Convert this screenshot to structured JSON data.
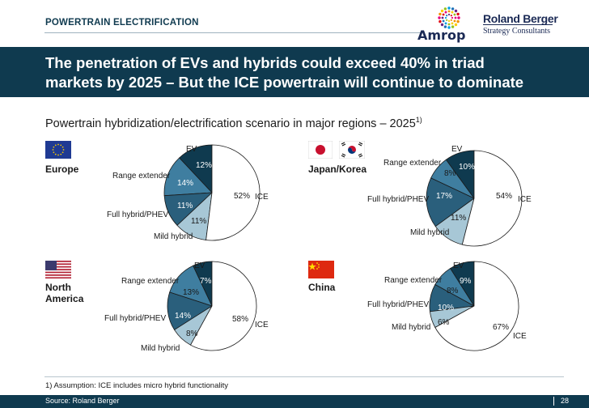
{
  "header": {
    "section": "POWERTRAIN ELECTRIFICATION",
    "title_line1": "The penetration of EVs and hybrids could exceed 40% in triad",
    "title_line2": "markets by 2025 – But the ICE powertrain will continue to dominate",
    "subtitle": "Powertrain hybridization/electrification scenario in major regions – 2025",
    "subtitle_note": "1)"
  },
  "logos": {
    "amrop": "Amrop",
    "roland_berger_line1": "Roland Berger",
    "roland_berger_line2": "Strategy Consultants"
  },
  "labels": {
    "ev": "EV",
    "range_extender": "Range extender",
    "full_hybrid": "Full hybrid/PHEV",
    "mild_hybrid": "Mild hybrid",
    "ice": "ICE"
  },
  "regions": {
    "europe": "Europe",
    "japan_korea": "Japan/Korea",
    "north_america_1": "North",
    "north_america_2": "America",
    "china": "China"
  },
  "flags": [
    "eu-flag-icon",
    "japan-flag-icon",
    "korea-flag-icon",
    "usa-flag-icon",
    "china-flag-icon"
  ],
  "colors": {
    "dark_navy": "#0f3a4f",
    "ev": "#0f3a4f",
    "range_extender": "#3f7ea0",
    "full_hybrid": "#2a5f7c",
    "mild_hybrid": "#a7c7d6",
    "ice": "#ffffff"
  },
  "chart_data": [
    {
      "type": "pie",
      "region": "Europe",
      "labels": [
        "EV",
        "Range extender",
        "Full hybrid/PHEV",
        "Mild hybrid",
        "ICE"
      ],
      "values": [
        12,
        14,
        11,
        11,
        52
      ],
      "value_labels": [
        "12%",
        "14%",
        "11%",
        "11%",
        "52%"
      ]
    },
    {
      "type": "pie",
      "region": "Japan/Korea",
      "labels": [
        "EV",
        "Range extender",
        "Full hybrid/PHEV",
        "Mild hybrid",
        "ICE"
      ],
      "values": [
        10,
        8,
        17,
        11,
        54
      ],
      "value_labels": [
        "10%",
        "8%",
        "17%",
        "11%",
        "54%"
      ]
    },
    {
      "type": "pie",
      "region": "North America",
      "labels": [
        "EV",
        "Range extender",
        "Full hybrid/PHEV",
        "Mild hybrid",
        "ICE"
      ],
      "values": [
        7,
        13,
        14,
        8,
        58
      ],
      "value_labels": [
        "7%",
        "13%",
        "14%",
        "8%",
        "58%"
      ]
    },
    {
      "type": "pie",
      "region": "China",
      "labels": [
        "EV",
        "Range extender",
        "Full hybrid/PHEV",
        "Mild hybrid",
        "ICE"
      ],
      "values": [
        9,
        8,
        10,
        6,
        67
      ],
      "value_labels": [
        "9%",
        "8%",
        "10%",
        "6%",
        "67%"
      ]
    }
  ],
  "footer": {
    "footnote": "1) Assumption: ICE includes micro hybrid functionality",
    "source": "Source: Roland Berger",
    "page": "28"
  }
}
